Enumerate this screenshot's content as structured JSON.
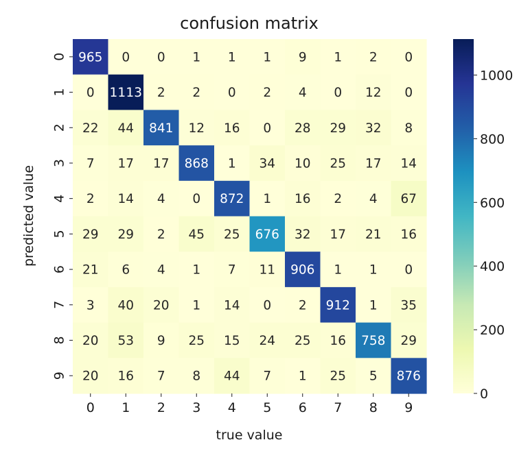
{
  "chart_data": {
    "type": "heatmap",
    "title": "confusion matrix",
    "xlabel": "true value",
    "ylabel": "predicted value",
    "x_categories": [
      "0",
      "1",
      "2",
      "3",
      "4",
      "5",
      "6",
      "7",
      "8",
      "9"
    ],
    "y_categories": [
      "0",
      "1",
      "2",
      "3",
      "4",
      "5",
      "6",
      "7",
      "8",
      "9"
    ],
    "values": [
      [
        965,
        0,
        0,
        1,
        1,
        1,
        9,
        1,
        2,
        0
      ],
      [
        0,
        1113,
        2,
        2,
        0,
        2,
        4,
        0,
        12,
        0
      ],
      [
        22,
        44,
        841,
        12,
        16,
        0,
        28,
        29,
        32,
        8
      ],
      [
        7,
        17,
        17,
        868,
        1,
        34,
        10,
        25,
        17,
        14
      ],
      [
        2,
        14,
        4,
        0,
        872,
        1,
        16,
        2,
        4,
        67
      ],
      [
        29,
        29,
        2,
        45,
        25,
        676,
        32,
        17,
        21,
        16
      ],
      [
        21,
        6,
        4,
        1,
        7,
        11,
        906,
        1,
        1,
        0
      ],
      [
        3,
        40,
        20,
        1,
        14,
        0,
        2,
        912,
        1,
        35
      ],
      [
        20,
        53,
        9,
        25,
        15,
        24,
        25,
        16,
        758,
        29
      ],
      [
        20,
        16,
        7,
        8,
        44,
        7,
        1,
        25,
        5,
        876
      ]
    ],
    "colormap": "YlGnBu",
    "colorbar": {
      "range": [
        0,
        1113
      ],
      "ticks": [
        0,
        200,
        400,
        600,
        800,
        1000
      ]
    }
  }
}
